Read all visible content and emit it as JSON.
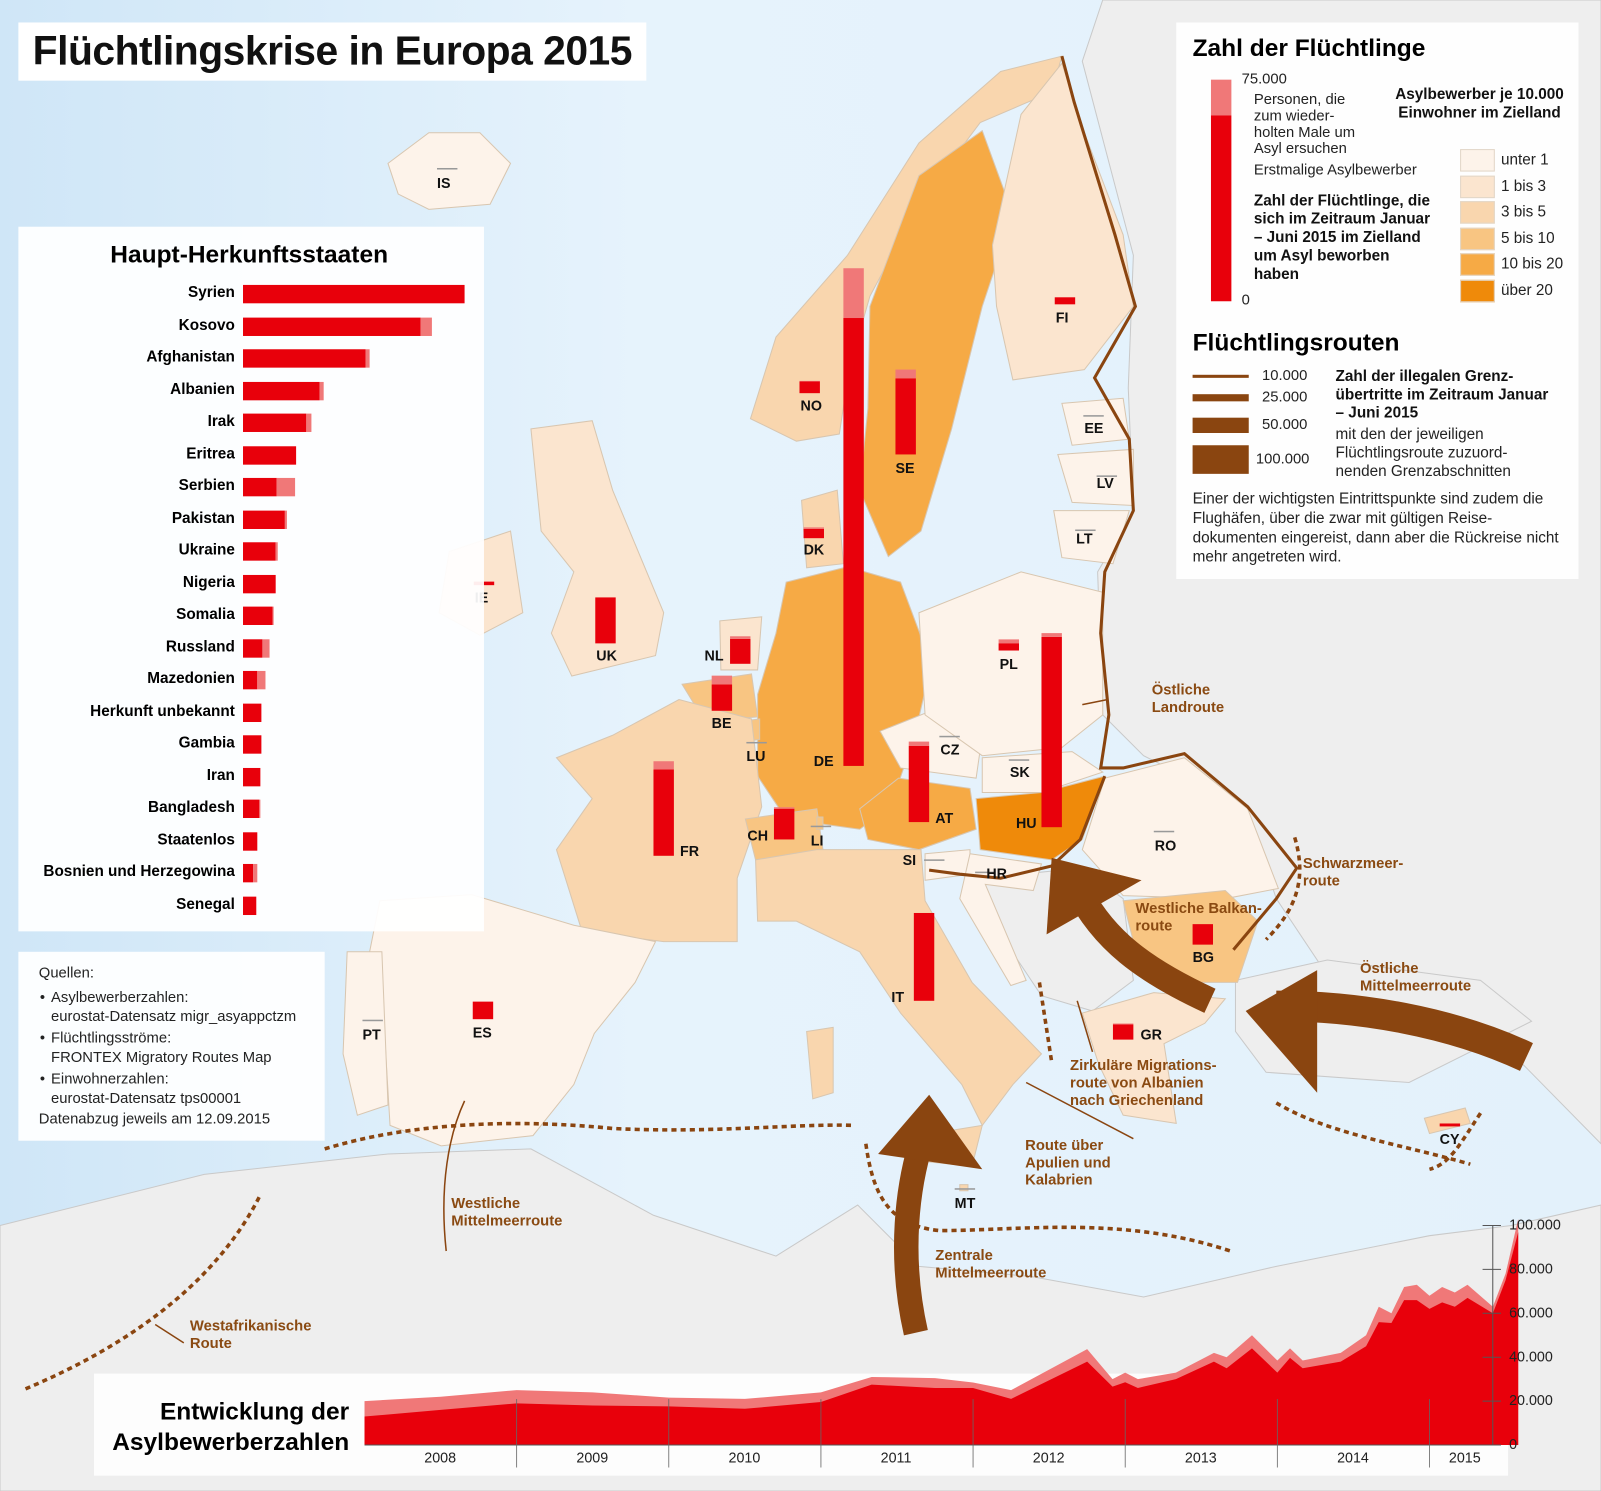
{
  "title": "Flüchtlingskrise in Europa 2015",
  "origins": {
    "heading": "Haupt-Herkunftsstaaten",
    "scale_max": 75000,
    "items": [
      {
        "label": "Syrien",
        "first": 75000,
        "repeat": 0
      },
      {
        "label": "Kosovo",
        "first": 60000,
        "repeat": 3800
      },
      {
        "label": "Afghanistan",
        "first": 41500,
        "repeat": 1400
      },
      {
        "label": "Albanien",
        "first": 25800,
        "repeat": 1400
      },
      {
        "label": "Irak",
        "first": 21600,
        "repeat": 1700
      },
      {
        "label": "Eritrea",
        "first": 17800,
        "repeat": 0
      },
      {
        "label": "Serbien",
        "first": 11500,
        "repeat": 6300
      },
      {
        "label": "Pakistan",
        "first": 14300,
        "repeat": 700
      },
      {
        "label": "Ukraine",
        "first": 11200,
        "repeat": 700
      },
      {
        "label": "Nigeria",
        "first": 11200,
        "repeat": 0
      },
      {
        "label": "Somalia",
        "first": 10100,
        "repeat": 350
      },
      {
        "label": "Russland",
        "first": 6600,
        "repeat": 2400
      },
      {
        "label": "Mazedonien",
        "first": 4900,
        "repeat": 2800
      },
      {
        "label": "Herkunft unbekannt",
        "first": 6300,
        "repeat": 0
      },
      {
        "label": "Gambia",
        "first": 6300,
        "repeat": 0
      },
      {
        "label": "Iran",
        "first": 5900,
        "repeat": 0
      },
      {
        "label": "Bangladesh",
        "first": 5600,
        "repeat": 350
      },
      {
        "label": "Staatenlos",
        "first": 4900,
        "repeat": 0
      },
      {
        "label": "Bosnien und Herzegowina",
        "first": 3500,
        "repeat": 1400
      },
      {
        "label": "Senegal",
        "first": 4500,
        "repeat": 0
      }
    ]
  },
  "sources": {
    "heading": "Quellen:",
    "items": [
      {
        "label": "Asylbewerberzahlen:",
        "value": "eurostat-Datensatz migr_asyappctzm"
      },
      {
        "label": "Flüchtlingsströme:",
        "value": "FRONTEX Migratory Routes Map"
      },
      {
        "label": "Einwohnerzahlen:",
        "value": "eurostat-Datensatz tps00001"
      }
    ],
    "footer": "Datenabzug jeweils am 12.09.2015"
  },
  "legend": {
    "refugees": {
      "heading": "Zahl der Flüchtlinge",
      "max_label": "75.000",
      "min_label": "0",
      "repeat_label": "Personen, die zum wieder- holten Male um Asyl ersuchen",
      "first_label": "Erstmalige Asylbewerber",
      "description": "Zahl der Flüchtlinge, die sich im Zeitraum Januar – Juni 2015 im Zielland um Asyl beworben haben",
      "colors": {
        "first": "#e8000b",
        "repeat": "#f07878"
      }
    },
    "density": {
      "heading": "Asylbewerber je 10.000 Einwohner im Zielland",
      "classes": [
        {
          "label": "unter 1",
          "color": "#fdf3ea"
        },
        {
          "label": "1 bis 3",
          "color": "#fbe5cf"
        },
        {
          "label": "3 bis 5",
          "color": "#f9d6ae"
        },
        {
          "label": "5 bis 10",
          "color": "#f8c582"
        },
        {
          "label": "10 bis 20",
          "color": "#f6aa45"
        },
        {
          "label": "über 20",
          "color": "#ef8a0a"
        }
      ]
    },
    "routes": {
      "heading": "Flüchtlingsrouten",
      "widths": [
        "10.000",
        "25.000",
        "50.000",
        "100.000"
      ],
      "description_bold": "Zahl der illegalen Grenz- übertritte im Zeitraum Januar – Juni 2015",
      "description": "mit den der jeweiligen Flüchtlingsroute zuzuord- nenden Grenzabschnitten",
      "note": "Einer der wichtigsten Eintrittspunkte sind zudem die Flughäfen, über die zwar mit gültigen Reise- dokumenten eingereist, dann aber die Rückreise nicht mehr angetreten wird.",
      "color": "#8a4510"
    }
  },
  "countries": [
    {
      "code": "IS",
      "class": 0,
      "first": 50,
      "repeat": 0
    },
    {
      "code": "IE",
      "class": 1,
      "first": 1200,
      "repeat": 100
    },
    {
      "code": "UK",
      "class": 1,
      "first": 15700,
      "repeat": 0
    },
    {
      "code": "NO",
      "class": 2,
      "first": 4000,
      "repeat": 200
    },
    {
      "code": "SE",
      "class": 4,
      "first": 26000,
      "repeat": 3000
    },
    {
      "code": "FI",
      "class": 1,
      "first": 2400,
      "repeat": 0
    },
    {
      "code": "EE",
      "class": 0,
      "first": 100,
      "repeat": 0
    },
    {
      "code": "LV",
      "class": 0,
      "first": 150,
      "repeat": 0
    },
    {
      "code": "LT",
      "class": 0,
      "first": 150,
      "repeat": 0
    },
    {
      "code": "DK",
      "class": 2,
      "first": 3200,
      "repeat": 500
    },
    {
      "code": "DE",
      "class": 4,
      "first": 153000,
      "repeat": 17000
    },
    {
      "code": "NL",
      "class": 1,
      "first": 8500,
      "repeat": 900
    },
    {
      "code": "BE",
      "class": 3,
      "first": 9000,
      "repeat": 3000
    },
    {
      "code": "LU",
      "class": 3,
      "first": 500,
      "repeat": 100
    },
    {
      "code": "FR",
      "class": 2,
      "first": 29500,
      "repeat": 2800
    },
    {
      "code": "CH",
      "class": 3,
      "first": 10500,
      "repeat": 500
    },
    {
      "code": "LI",
      "class": 3,
      "first": 50,
      "repeat": 0
    },
    {
      "code": "AT",
      "class": 4,
      "first": 26000,
      "repeat": 1500
    },
    {
      "code": "CZ",
      "class": 0,
      "first": 500,
      "repeat": 100
    },
    {
      "code": "PL",
      "class": 0,
      "first": 2500,
      "repeat": 1300
    },
    {
      "code": "SK",
      "class": 0,
      "first": 100,
      "repeat": 0
    },
    {
      "code": "HU",
      "class": 5,
      "first": 65000,
      "repeat": 1300
    },
    {
      "code": "SI",
      "class": 0,
      "first": 100,
      "repeat": 0
    },
    {
      "code": "HR",
      "class": 0,
      "first": 100,
      "repeat": 0
    },
    {
      "code": "RO",
      "class": 0,
      "first": 600,
      "repeat": 0
    },
    {
      "code": "BG",
      "class": 3,
      "first": 7000,
      "repeat": 0
    },
    {
      "code": "GR",
      "class": 1,
      "first": 5200,
      "repeat": 300
    },
    {
      "code": "IT",
      "class": 2,
      "first": 30000,
      "repeat": 0
    },
    {
      "code": "MT",
      "class": 2,
      "first": 600,
      "repeat": 0
    },
    {
      "code": "CY",
      "class": 2,
      "first": 1000,
      "repeat": 0
    },
    {
      "code": "ES",
      "class": 0,
      "first": 6000,
      "repeat": 0
    },
    {
      "code": "PT",
      "class": 0,
      "first": 300,
      "repeat": 0
    }
  ],
  "route_labels": {
    "east_land": "Östliche Landroute",
    "black_sea": "Schwarzmeer- route",
    "west_balkan": "Westliche Balkan- route",
    "east_med": "Östliche Mittelmeerroute",
    "circular": "Zirkuläre Migrations- route von Albanien nach Griechenland",
    "apulia": "Route über Apulien und Kalabrien",
    "central_med": "Zentrale Mittelmeerroute",
    "west_med": "Westliche Mittelmeerroute",
    "west_africa": "Westafrikanische Route"
  },
  "chart_data": {
    "type": "area",
    "title": "Entwicklung der Asylbewerberzahlen",
    "x_tick_labels": [
      "2008",
      "2009",
      "2010",
      "2011",
      "2012",
      "2013",
      "2014",
      "2015"
    ],
    "y_tick_labels": [
      "0",
      "20.000",
      "40.000",
      "60.000",
      "80.000",
      "100.000"
    ],
    "ylim": [
      0,
      100000
    ],
    "x": [
      "2008-01",
      "2008-07",
      "2009-01",
      "2009-07",
      "2010-01",
      "2010-07",
      "2011-01",
      "2011-05",
      "2011-10",
      "2012-01",
      "2012-04",
      "2012-10",
      "2012-12",
      "2013-01",
      "2013-02",
      "2013-05",
      "2013-08",
      "2013-09",
      "2013-11",
      "2014-01",
      "2014-02",
      "2014-03",
      "2014-06",
      "2014-08",
      "2014-09",
      "2014-10",
      "2014-11",
      "2014-12",
      "2015-01",
      "2015-02",
      "2015-03",
      "2015-04",
      "2015-06",
      "2015-07",
      "2015-08"
    ],
    "series": [
      {
        "name": "Personen, die zum wiederholten Male um Asyl ersuchen",
        "color": "#f07878",
        "values": [
          20000,
          22000,
          25000,
          24000,
          21600,
          21000,
          24000,
          31000,
          30500,
          28500,
          25000,
          43700,
          30000,
          33000,
          30000,
          33000,
          42000,
          40000,
          50000,
          38500,
          44000,
          38500,
          42000,
          50000,
          63000,
          60000,
          72000,
          73000,
          68000,
          72000,
          69500,
          73000,
          63000,
          78000,
          103000
        ]
      },
      {
        "name": "Erstmalige Asylbewerber",
        "color": "#e8000b",
        "values": [
          13000,
          16000,
          19000,
          18000,
          17600,
          16500,
          19600,
          27500,
          26000,
          26000,
          21000,
          38000,
          26600,
          28600,
          26000,
          30000,
          38000,
          35000,
          44000,
          33000,
          39700,
          35000,
          38000,
          45000,
          56000,
          55600,
          66000,
          66000,
          62000,
          65000,
          63000,
          67000,
          60000,
          75000,
          97000
        ]
      }
    ]
  }
}
